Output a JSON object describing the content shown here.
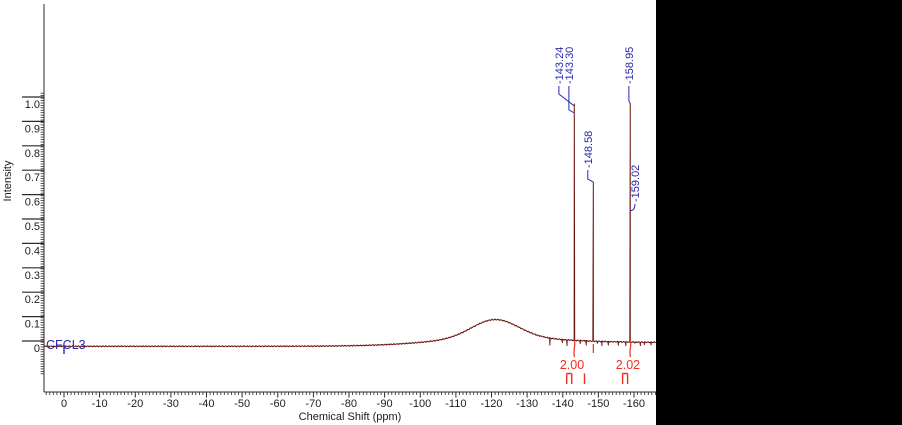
{
  "window": {
    "background": "#000000",
    "panel_background": "#ffffff"
  },
  "colors": {
    "spectrum_line": "#6b140e",
    "peak_label": "#2a2aad",
    "integral": "#ee2e1e",
    "axis": "#2b2b2b",
    "axis_text": "#1c1c1c"
  },
  "chart_data": {
    "type": "line",
    "title": "",
    "xlabel": "Chemical Shift (ppm)",
    "ylabel": "Intensity",
    "xlim": [
      5.6,
      -166.2
    ],
    "ylim": [
      0,
      1.0
    ],
    "grid": false,
    "x_ticks": [
      0,
      -10,
      -20,
      -30,
      -40,
      -50,
      -60,
      -70,
      -80,
      -90,
      -100,
      -110,
      -120,
      -130,
      -140,
      -150,
      -160
    ],
    "y_tick_labels": [
      "0",
      "0.1",
      "0.2",
      "0.3",
      "0.4",
      "0.5",
      "0.6",
      "0.7",
      "0.8",
      "0.9",
      "1.0"
    ],
    "reference": {
      "label": "CFCL3",
      "ppm": 0
    },
    "peaks": [
      {
        "ppm": -143.24,
        "label": "-143.24",
        "height": 1.0
      },
      {
        "ppm": -143.3,
        "label": "-143.30",
        "height": 0.98
      },
      {
        "ppm": -148.58,
        "label": "-148.58",
        "height": 0.68
      },
      {
        "ppm": -158.95,
        "label": "-158.95",
        "height": 1.0
      },
      {
        "ppm": -159.02,
        "label": "-159.02",
        "height": 0.6
      }
    ],
    "integrals": [
      {
        "value": "2.00",
        "ppm": -142.6
      },
      {
        "value": "2.02",
        "ppm": -158.3
      }
    ],
    "integral_region_marks": [
      {
        "style": "bracket",
        "ppm_start": -141.1,
        "ppm_end": -142.5
      },
      {
        "style": "tick",
        "ppm_start": -146.1,
        "ppm_end": -146.1
      },
      {
        "style": "bracket",
        "ppm_start": -156.8,
        "ppm_end": -158.2
      }
    ],
    "broad_hump": {
      "center_ppm": -121,
      "height": 0.115
    },
    "noise_spikes": [
      {
        "ppm": 0.0,
        "h": 0.013
      },
      {
        "ppm": -136.4,
        "h": 0.012
      },
      {
        "ppm": -139.9,
        "h": 0.022
      },
      {
        "ppm": -141.2,
        "h": 0.01
      },
      {
        "ppm": -144.9,
        "h": 0.018
      },
      {
        "ppm": -146.6,
        "h": 0.012
      },
      {
        "ppm": -149.7,
        "h": 0.019
      },
      {
        "ppm": -151.0,
        "h": 0.01
      },
      {
        "ppm": -152.8,
        "h": 0.012
      },
      {
        "ppm": -155.6,
        "h": 0.012
      },
      {
        "ppm": -157.7,
        "h": 0.01
      },
      {
        "ppm": -160.3,
        "h": 0.02
      },
      {
        "ppm": -161.8,
        "h": 0.01
      },
      {
        "ppm": -162.9,
        "h": 0.014
      },
      {
        "ppm": -164.8,
        "h": 0.013
      }
    ]
  }
}
